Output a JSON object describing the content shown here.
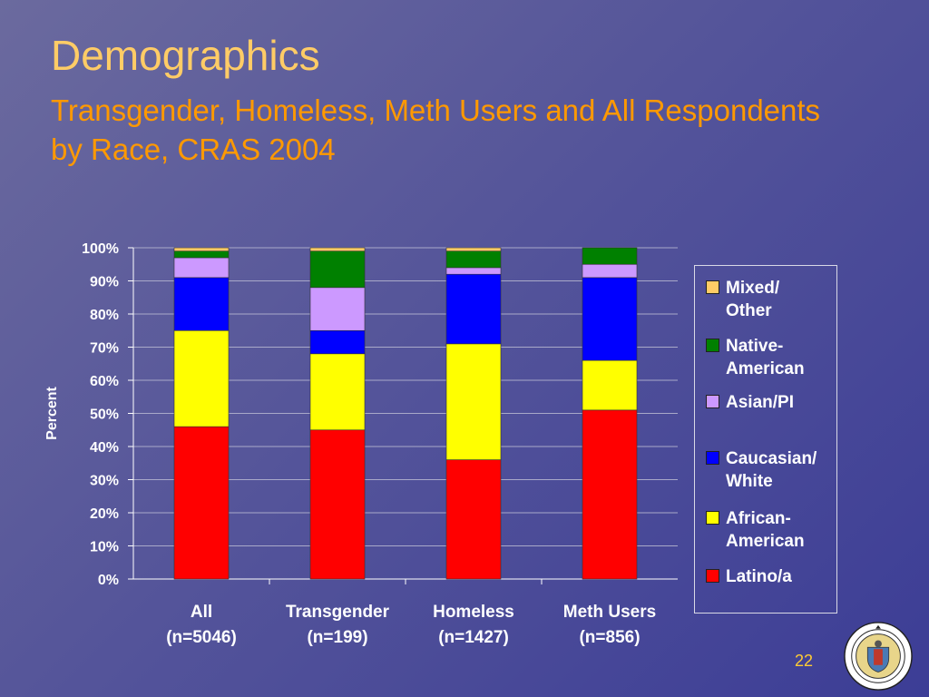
{
  "slide": {
    "title": "Demographics",
    "subtitle": "Transgender, Homeless, Meth Users and All Respondents by Race, CRAS 2004",
    "page_number": "22",
    "seal_text": "COUNTY OF LOS ANGELES · CALIFORNIA"
  },
  "chart_data": {
    "type": "bar",
    "stacked": true,
    "ylabel": "Percent",
    "ylim": [
      0,
      100
    ],
    "yticks": [
      "0%",
      "10%",
      "20%",
      "30%",
      "40%",
      "50%",
      "60%",
      "70%",
      "80%",
      "90%",
      "100%"
    ],
    "grid": true,
    "legend_position": "right",
    "categories": [
      {
        "label": "All",
        "n": "(n=5046)"
      },
      {
        "label": "Transgender",
        "n": "(n=199)"
      },
      {
        "label": "Homeless",
        "n": "(n=1427)"
      },
      {
        "label": "Meth Users",
        "n": "(n=856)"
      }
    ],
    "series": [
      {
        "name": "Latino/a",
        "color": "#ff0000",
        "values": [
          46,
          45,
          36,
          51
        ]
      },
      {
        "name": "African-\nAmerican",
        "color": "#ffff00",
        "values": [
          29,
          23,
          35,
          15
        ]
      },
      {
        "name": "Caucasian/\nWhite",
        "color": "#0000ff",
        "values": [
          16,
          7,
          21,
          25
        ]
      },
      {
        "name": "Asian/PI",
        "color": "#cc99ff",
        "values": [
          6,
          13,
          2,
          4
        ]
      },
      {
        "name": "Native-\nAmerican",
        "color": "#008000",
        "values": [
          2,
          11,
          5,
          5
        ]
      },
      {
        "name": "Mixed/\nOther",
        "color": "#ffcc66",
        "values": [
          1,
          1,
          1,
          0
        ]
      }
    ]
  }
}
